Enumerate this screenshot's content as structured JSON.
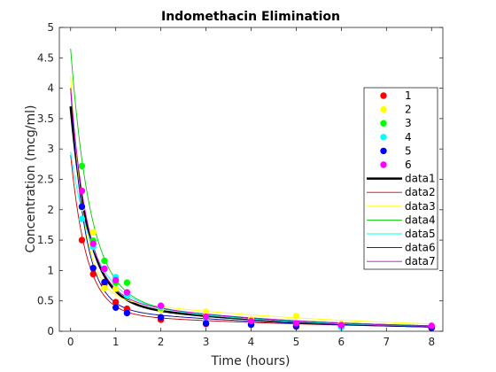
{
  "chart_data": {
    "type": "scatter",
    "title": "Indomethacin Elimination",
    "xlabel": "Time (hours)",
    "ylabel": "Concentration (mcg/ml)",
    "xlim": [
      -0.25,
      8.25
    ],
    "ylim": [
      0,
      5
    ],
    "xticks": [
      "0",
      "1",
      "2",
      "3",
      "4",
      "5",
      "6",
      "7",
      "8"
    ],
    "yticks": [
      "0",
      "0.5",
      "1",
      "1.5",
      "2",
      "2.5",
      "3",
      "3.5",
      "4",
      "4.5",
      "5"
    ],
    "grid": false,
    "legend_position": "right",
    "time": [
      0.25,
      0.5,
      0.75,
      1,
      1.25,
      2,
      3,
      4,
      5,
      6,
      8
    ],
    "series": [
      {
        "name": "1",
        "kind": "markers",
        "color": "#ff0000",
        "values": [
          1.5,
          0.94,
          0.78,
          0.48,
          0.37,
          0.19,
          0.12,
          0.11,
          0.08,
          0.07,
          0.05
        ]
      },
      {
        "name": "2",
        "kind": "markers",
        "color": "#ffff00",
        "values": [
          2.03,
          1.63,
          0.71,
          0.7,
          0.64,
          0.36,
          0.32,
          0.2,
          0.25,
          0.12,
          0.08
        ]
      },
      {
        "name": "3",
        "kind": "markers",
        "color": "#00ff00",
        "values": [
          2.72,
          1.49,
          1.16,
          0.8,
          0.8,
          0.39,
          0.22,
          0.12,
          0.11,
          0.08,
          0.08
        ]
      },
      {
        "name": "4",
        "kind": "markers",
        "color": "#00ffff",
        "values": [
          1.85,
          1.39,
          1.02,
          0.89,
          0.59,
          0.4,
          0.16,
          0.11,
          0.1,
          0.07,
          0.07
        ]
      },
      {
        "name": "5",
        "kind": "markers",
        "color": "#0000ff",
        "values": [
          2.05,
          1.04,
          0.81,
          0.39,
          0.3,
          0.23,
          0.13,
          0.11,
          0.08,
          0.1,
          0.06
        ]
      },
      {
        "name": "6",
        "kind": "markers",
        "color": "#ff00ff",
        "values": [
          2.31,
          1.44,
          1.03,
          0.84,
          0.64,
          0.42,
          0.24,
          0.17,
          0.13,
          0.1,
          0.09
        ]
      }
    ],
    "fits": [
      {
        "name": "data1",
        "color": "#000000",
        "width": 2.5,
        "b": [
          0.5,
          0.23,
          3.2,
          2.5
        ]
      },
      {
        "name": "data2",
        "color": "#cc0000",
        "width": 0.9,
        "b": [
          0.3,
          0.18,
          2.6,
          2.8
        ]
      },
      {
        "name": "data3",
        "color": "#ffff00",
        "width": 0.9,
        "b": [
          0.6,
          0.2,
          3.6,
          3.5
        ]
      },
      {
        "name": "data4",
        "color": "#00cc00",
        "width": 0.9,
        "b": [
          0.55,
          0.23,
          4.1,
          2.3
        ]
      },
      {
        "name": "data5",
        "color": "#00ffff",
        "width": 0.9,
        "b": [
          0.55,
          0.25,
          2.4,
          2.0
        ]
      },
      {
        "name": "data6",
        "color": "#000099",
        "width": 0.9,
        "b": [
          0.4,
          0.22,
          3.6,
          3.2
        ]
      },
      {
        "name": "data7",
        "color": "#cc00cc",
        "width": 0.9,
        "b": [
          0.6,
          0.25,
          3.4,
          2.7
        ]
      }
    ]
  }
}
